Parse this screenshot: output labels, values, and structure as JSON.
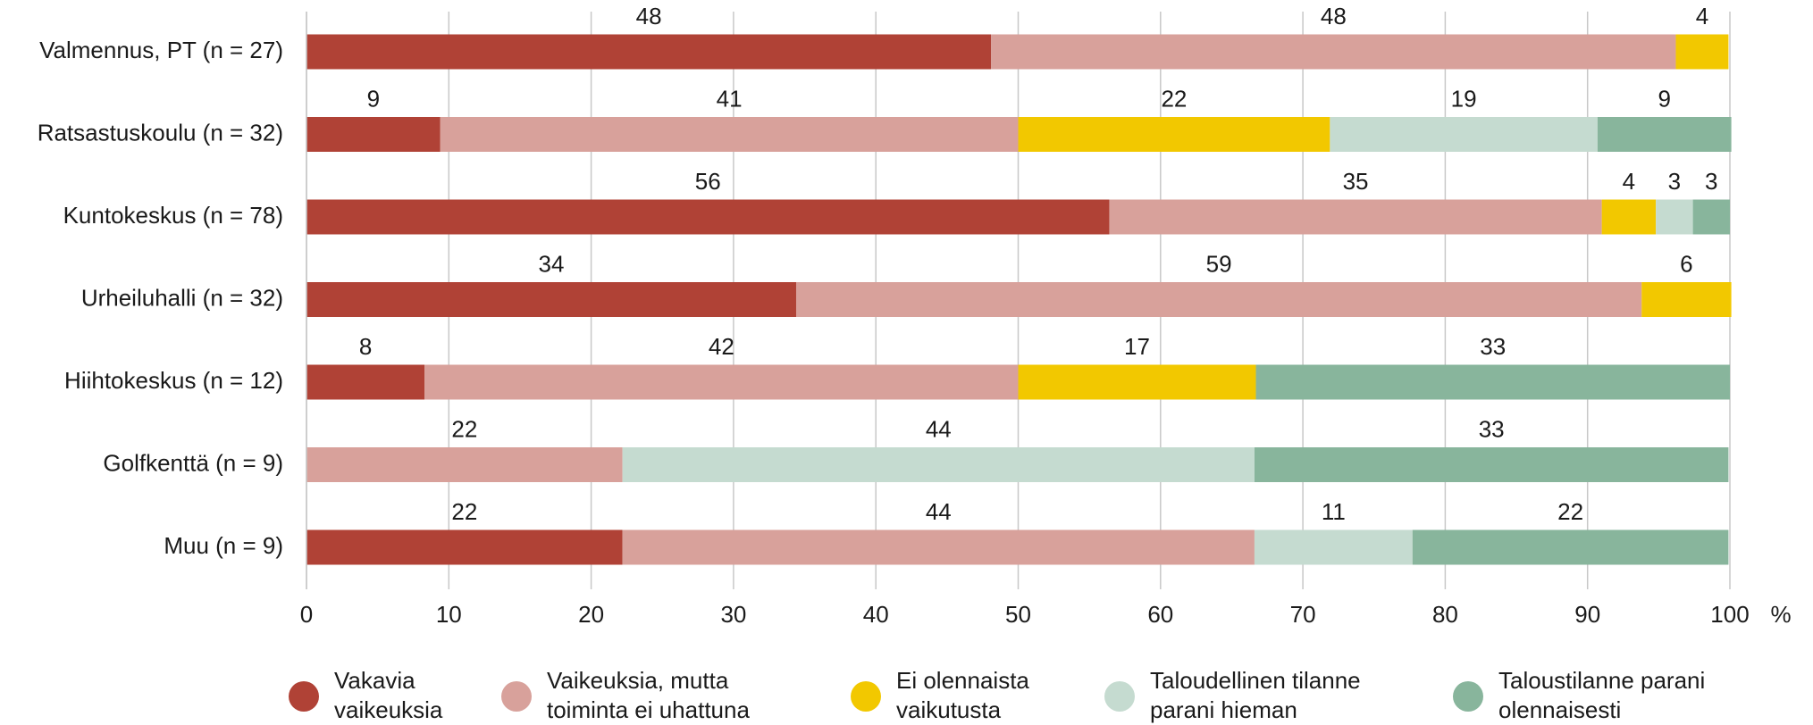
{
  "chart_data": {
    "type": "stacked_bar_horizontal",
    "categories": [
      "Valmennus, PT (n = 27)",
      "Ratsastuskoulu (n = 32)",
      "Kuntokeskus (n = 78)",
      "Urheiluhalli (n = 32)",
      "Hiihtokeskus (n = 12)",
      "Golfkenttä (n = 9)",
      "Muu (n = 9)"
    ],
    "series": [
      {
        "name": "Vakavia vaikeuksia",
        "color": "#b04236",
        "values": [
          48.1,
          9.4,
          56.4,
          34.4,
          8.3,
          null,
          22.2
        ],
        "value_labels": [
          "48",
          "9",
          "56",
          "34",
          "8",
          null,
          "22"
        ]
      },
      {
        "name": "Vaikeuksia, mutta toiminta ei uhattuna",
        "color": "#d8a19b",
        "values": [
          48.1,
          40.6,
          34.6,
          59.4,
          41.7,
          22.2,
          44.4
        ],
        "value_labels": [
          "48",
          "41",
          "35",
          "59",
          "42",
          "22",
          "44"
        ]
      },
      {
        "name": "Ei olennaista vaikutusta",
        "color": "#f2c800",
        "values": [
          3.7,
          21.9,
          3.8,
          6.3,
          16.7,
          null,
          null
        ],
        "value_labels": [
          "4",
          "22",
          "4",
          "6",
          "17",
          null,
          null
        ]
      },
      {
        "name": "Taloudellinen tilanne parani hieman",
        "color": "#c5dbd0",
        "values": [
          null,
          18.8,
          2.6,
          null,
          null,
          44.4,
          11.1
        ],
        "value_labels": [
          null,
          "19",
          "3",
          null,
          null,
          "44",
          "11"
        ]
      },
      {
        "name": "Taloustilanne parani olennaisesti",
        "color": "#88b59c",
        "values": [
          null,
          9.4,
          2.6,
          null,
          33.3,
          33.3,
          22.2
        ],
        "value_labels": [
          null,
          "9",
          "3",
          null,
          "33",
          "33",
          "22"
        ]
      }
    ],
    "xlabel": "%",
    "xlim": [
      0,
      100
    ],
    "xticks": [
      0,
      10,
      20,
      30,
      40,
      50,
      60,
      70,
      80,
      90,
      100
    ],
    "grid": true
  }
}
